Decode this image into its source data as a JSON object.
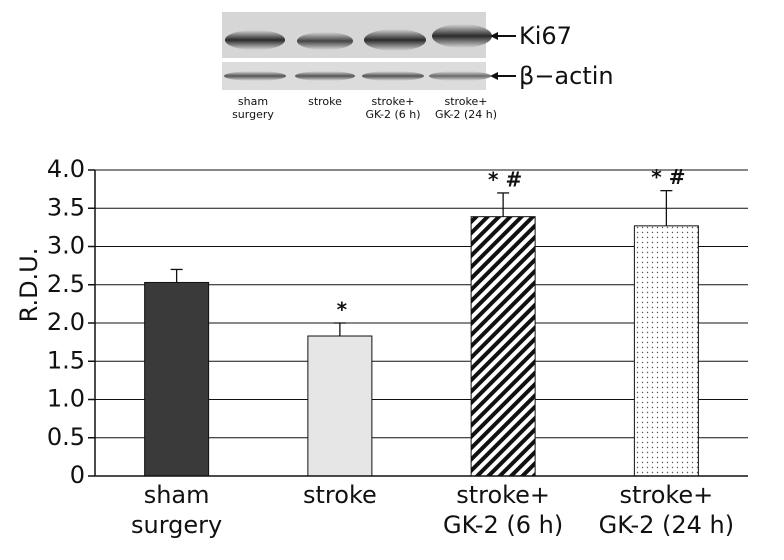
{
  "blot": {
    "labels": [
      "Ki67",
      "β−actin"
    ],
    "lanes": [
      "sham\nsurgery",
      "stroke",
      "stroke+\nGK-2 (6 h)",
      "stroke+\nGK-2 (24 h)"
    ]
  },
  "chart_data": {
    "type": "bar",
    "y_label": "R.D.U.",
    "categories": [
      "sham\nsurgery",
      "stroke",
      "stroke+\nGK-2 (6 h)",
      "stroke+\nGK-2 (24 h)"
    ],
    "values": [
      2.53,
      1.83,
      3.39,
      3.27
    ],
    "errors": [
      0.17,
      0.17,
      0.31,
      0.46
    ],
    "annotations": [
      null,
      "*",
      "* #",
      "* #"
    ],
    "colors": [
      "#3a3a3a",
      "#e6e6e6",
      "#111111",
      "#555555"
    ],
    "fills": [
      "solid",
      "solid",
      "diagonal",
      "dots"
    ],
    "ylim": [
      0,
      4
    ],
    "yticks": [
      0,
      {
        "value": 0.5,
        "label": "0.5"
      },
      {
        "value": 1,
        "label": "1.0"
      },
      {
        "value": 1.5,
        "label": "1.5"
      },
      {
        "value": 2,
        "label": "2.0"
      },
      {
        "value": 2.5,
        "label": "2.5"
      },
      {
        "value": 3,
        "label": "3.0"
      },
      {
        "value": 3.5,
        "label": "3.5"
      },
      {
        "value": 4,
        "label": "4.0"
      }
    ],
    "grid": true
  }
}
